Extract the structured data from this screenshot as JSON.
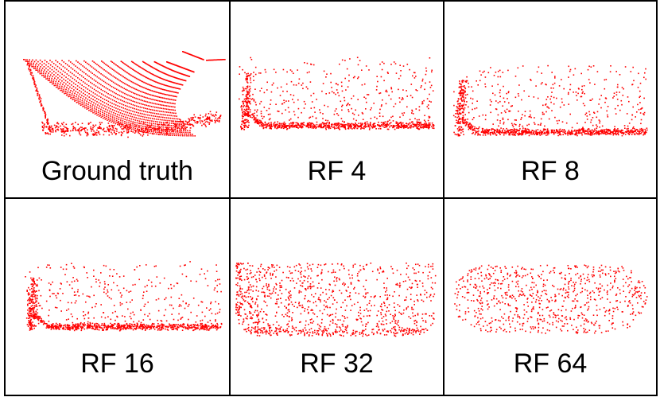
{
  "figure": {
    "panels": [
      {
        "label": "Ground truth",
        "style": "scanlines",
        "point_color": "#ff0000"
      },
      {
        "label": "RF 4",
        "style": "dense-bottom",
        "point_color": "#ff0000"
      },
      {
        "label": "RF 8",
        "style": "dense-bottom",
        "point_color": "#ff0000"
      },
      {
        "label": "RF 16",
        "style": "dense-bottom",
        "point_color": "#ff0000"
      },
      {
        "label": "RF 32",
        "style": "dense-left",
        "point_color": "#ff0000"
      },
      {
        "label": "RF 64",
        "style": "uniform",
        "point_color": "#ff0000"
      }
    ]
  }
}
